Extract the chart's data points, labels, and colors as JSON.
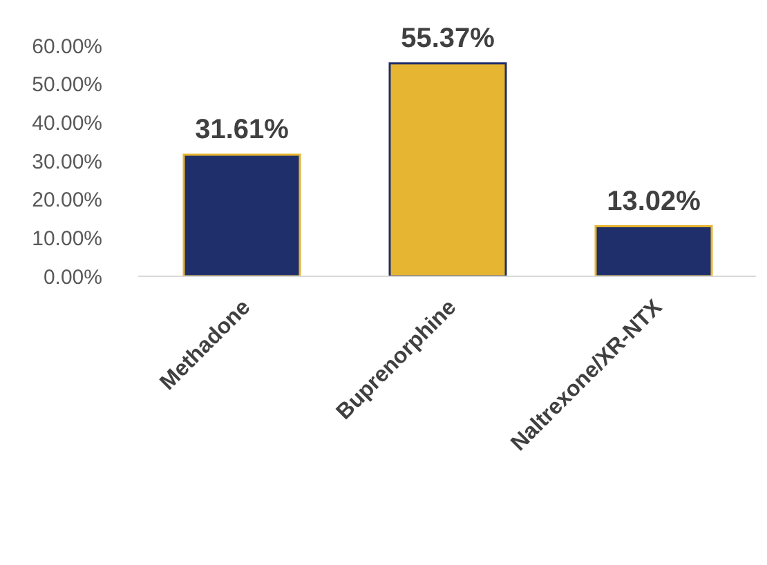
{
  "chart_data": {
    "type": "bar",
    "categories": [
      "Methadone",
      "Buprenorphine",
      "Naltrexone/XR-NTX"
    ],
    "values": [
      31.61,
      55.37,
      13.02
    ],
    "colors": [
      "#1f2f6b",
      "#e6b531",
      "#1f2f6b"
    ],
    "value_labels": [
      "31.61%",
      "55.37%",
      "13.02%"
    ],
    "ylim": [
      0,
      60
    ],
    "yticks": [
      {
        "value": 0,
        "label": "0.00%"
      },
      {
        "value": 10,
        "label": "10.00%"
      },
      {
        "value": 20,
        "label": "20.00%"
      },
      {
        "value": 30,
        "label": "30.00%"
      },
      {
        "value": 40,
        "label": "40.00%"
      },
      {
        "value": 50,
        "label": "50.00%"
      },
      {
        "value": 60,
        "label": "60.00%"
      }
    ],
    "grid": false,
    "legend": false
  }
}
